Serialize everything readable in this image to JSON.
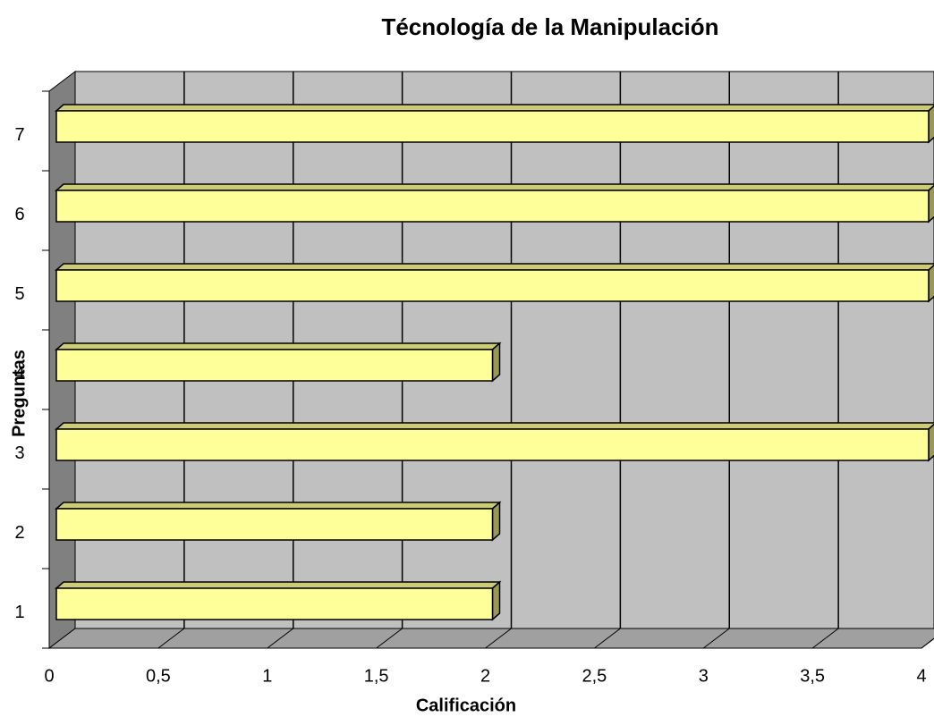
{
  "chart_data": {
    "type": "bar",
    "orientation": "horizontal",
    "title": "Técnología de la Manipulación",
    "x_label": "Calificación",
    "y_label": "Preguntas",
    "categories": [
      "1",
      "2",
      "3",
      "4",
      "5",
      "6",
      "7"
    ],
    "values": [
      2,
      2,
      4,
      2,
      4,
      4,
      4
    ],
    "color": "#ffff99",
    "xlim": [
      0,
      4
    ],
    "xticks": [
      0,
      {
        "value": 0.5,
        "label": "0,5"
      },
      1,
      {
        "value": 1.5,
        "label": "1,5"
      },
      2,
      {
        "value": 2.5,
        "label": "2,5"
      },
      3,
      {
        "value": 3.5,
        "label": "3,5"
      },
      4
    ],
    "grid": true
  }
}
